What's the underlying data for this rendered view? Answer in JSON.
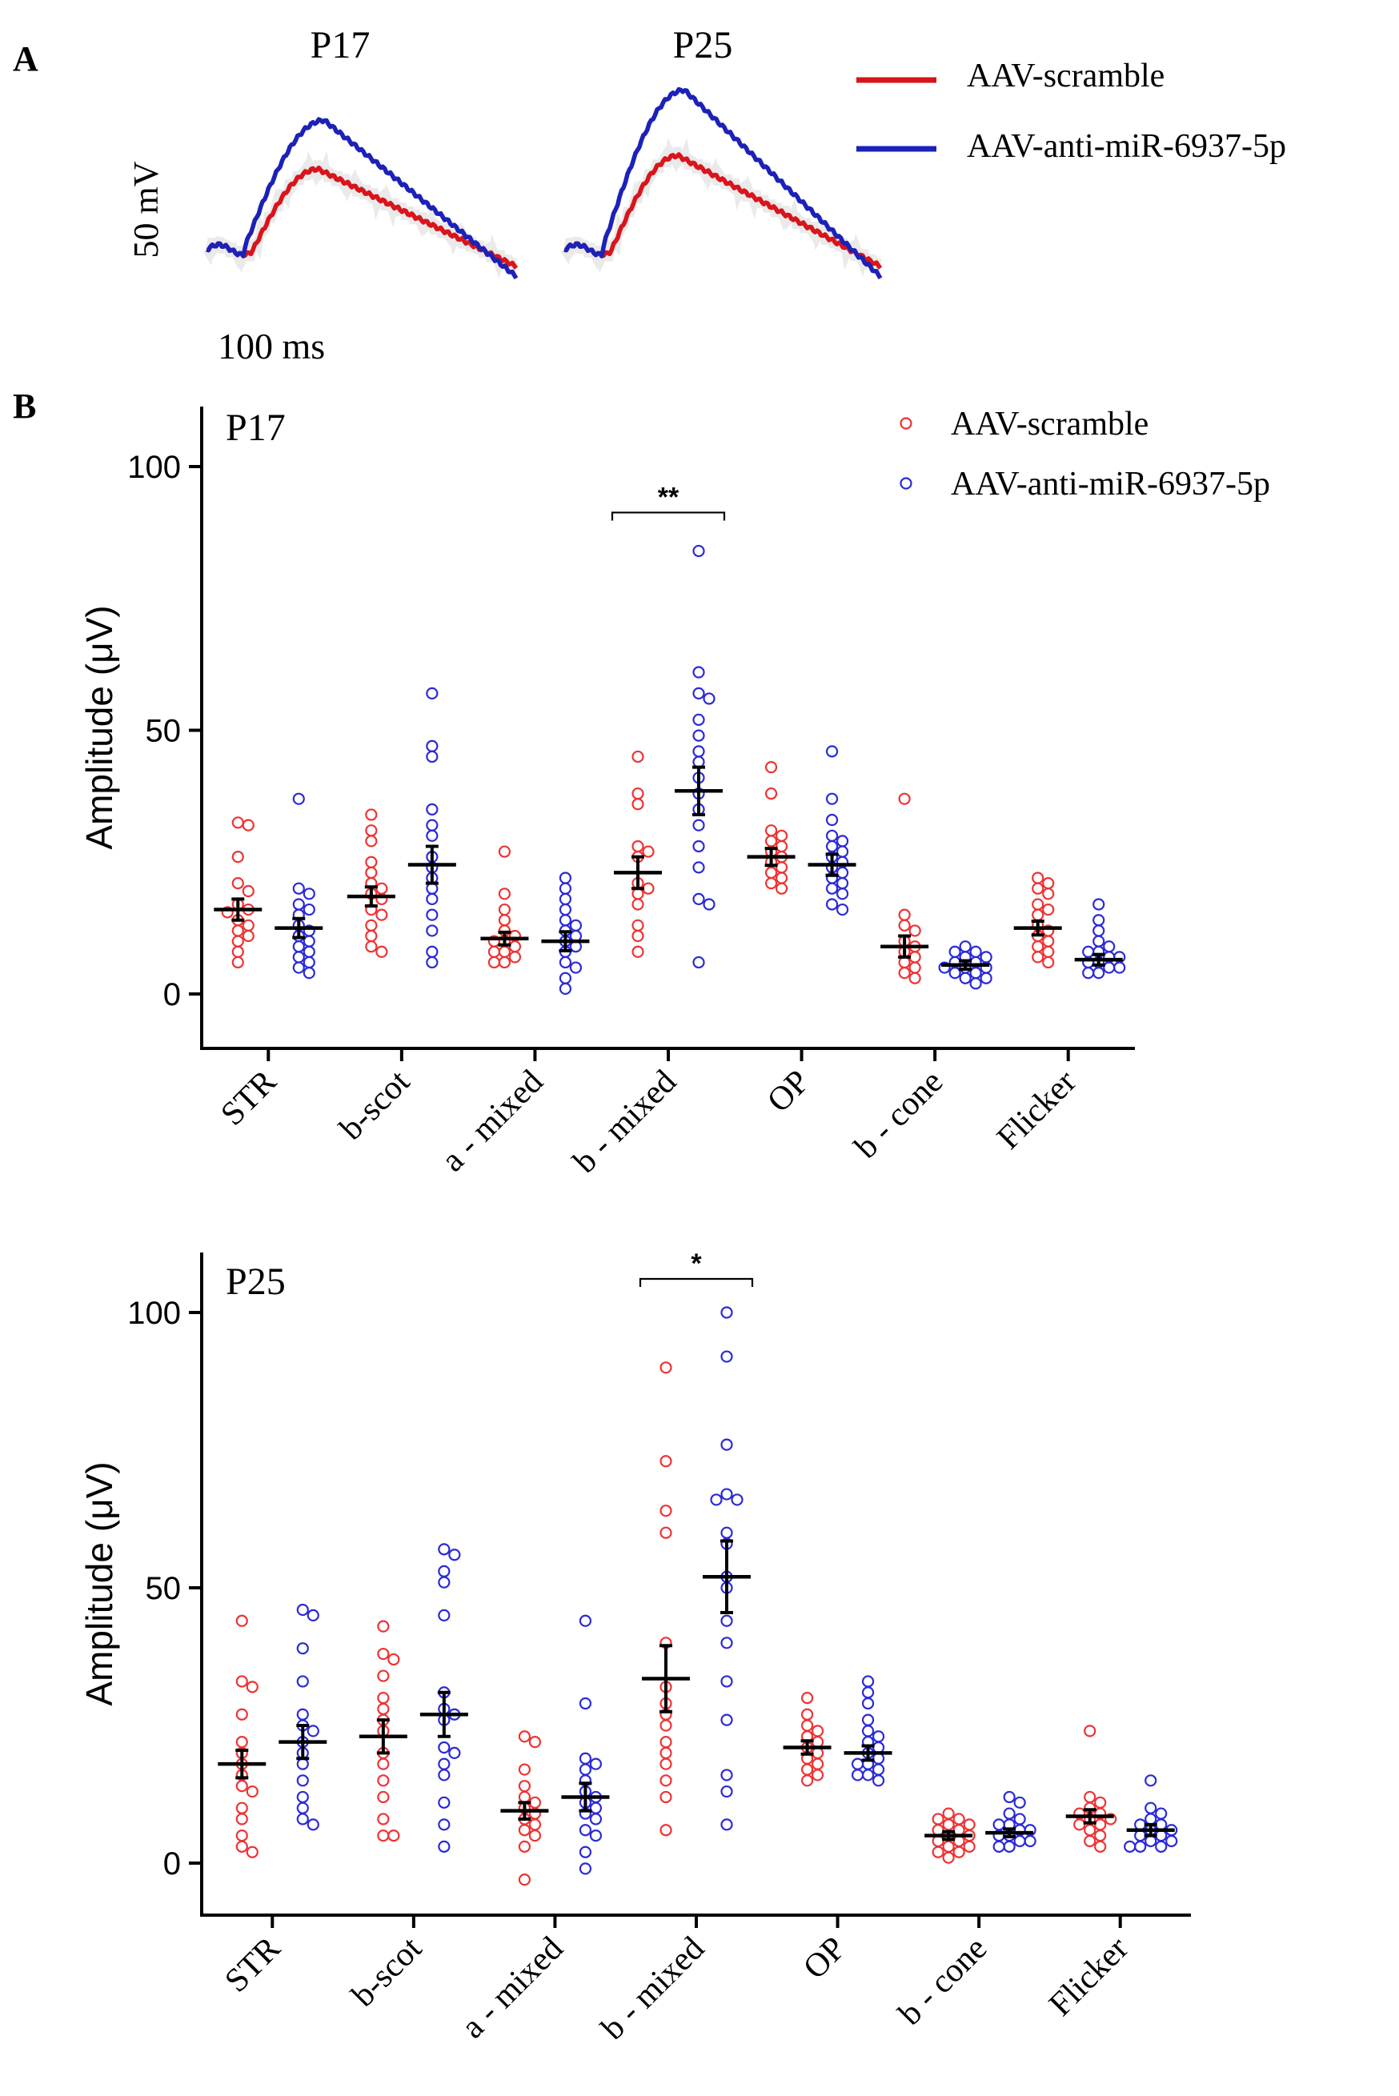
{
  "panel_a": {
    "label": "A",
    "traces": [
      {
        "title": "P17",
        "scramble_peak": 0.48,
        "anti_peak": 0.77
      },
      {
        "title": "P25",
        "scramble_peak": 0.56,
        "anti_peak": 0.95
      }
    ],
    "scale_voltage": "50 mV",
    "scale_time": "100 ms",
    "legend": [
      {
        "label": "AAV-scramble",
        "color": "#d9141b"
      },
      {
        "label": "AAV-anti-miR-6937-5p",
        "color": "#1c21b8"
      }
    ]
  },
  "panel_b": {
    "label": "B",
    "legend": [
      {
        "label": "AAV-scramble",
        "color": "#ee3333"
      },
      {
        "label": "AAV-anti-miR-6937-5p",
        "color": "#2a2ad8"
      }
    ]
  },
  "chart_data": [
    {
      "type": "scatter",
      "title": "P17",
      "ylabel": "Amplitude (μV)",
      "ylim": [
        -10,
        110
      ],
      "yticks": [
        0,
        50,
        100
      ],
      "categories": [
        "STR",
        "b-scot",
        "a - mixed",
        "b - mixed",
        "OP",
        "b - cone",
        "Flicker"
      ],
      "significance": [
        {
          "category": "b - mixed",
          "label": "**"
        }
      ],
      "series": [
        {
          "name": "AAV-scramble",
          "color": "#ee3333",
          "mean": [
            16,
            18.5,
            10.5,
            23,
            26,
            9,
            12.5
          ],
          "sem": [
            2,
            1.8,
            1.2,
            3,
            1.6,
            2,
            1.3
          ],
          "points": [
            [
              32.5,
              32,
              26,
              21,
              19.5,
              17,
              16,
              15.5,
              14,
              13,
              12,
              11,
              10,
              8,
              6
            ],
            [
              34,
              31,
              29,
              25,
              23,
              21,
              20,
              19,
              18,
              16,
              15,
              13,
              11,
              9,
              8
            ],
            [
              27,
              19,
              16,
              14,
              12,
              11,
              10,
              10,
              9,
              8,
              8,
              7,
              6,
              6
            ],
            [
              45,
              38,
              36,
              28,
              27,
              26,
              21,
              20,
              19,
              17,
              13,
              11,
              8
            ],
            [
              43,
              38,
              31,
              30,
              29,
              28,
              27,
              26,
              25,
              24,
              23,
              22,
              21,
              20
            ],
            [
              37,
              15,
              13,
              12,
              10,
              9,
              8,
              7,
              6,
              5,
              4,
              3
            ],
            [
              22,
              21,
              20,
              19,
              17,
              16,
              15,
              13,
              12,
              11,
              10,
              9,
              8,
              7,
              6
            ]
          ]
        },
        {
          "name": "AAV-anti-miR-6937-5p",
          "color": "#2a2ad8",
          "mean": [
            12.5,
            24.5,
            10,
            38.5,
            24.5,
            5.5,
            6.5
          ],
          "sem": [
            1.8,
            3.5,
            1.8,
            4.5,
            2,
            0.8,
            1
          ],
          "points": [
            [
              37,
              20,
              19,
              17,
              16,
              15,
              13,
              12,
              11,
              10,
              9,
              8,
              7,
              6,
              5,
              4
            ],
            [
              57,
              47,
              45,
              35,
              32,
              30,
              26,
              24,
              22,
              20,
              18,
              15,
              12,
              8,
              6
            ],
            [
              22,
              20,
              18,
              16,
              14,
              13,
              12,
              11,
              10,
              9,
              8,
              6,
              5,
              3,
              1
            ],
            [
              84,
              61,
              57,
              56,
              52,
              49,
              46,
              44,
              41,
              38,
              35,
              32,
              28,
              24,
              18,
              17,
              6
            ],
            [
              46,
              37,
              33,
              30,
              29,
              28,
              27,
              26,
              25,
              24,
              23,
              22,
              21,
              20,
              19,
              17,
              16
            ],
            [
              9,
              8,
              8,
              7,
              7,
              6,
              6,
              5,
              5,
              5,
              4,
              4,
              3,
              3,
              2
            ],
            [
              17,
              14,
              12,
              10,
              9,
              8,
              8,
              7,
              7,
              6,
              6,
              5,
              5,
              4,
              4
            ]
          ]
        }
      ]
    },
    {
      "type": "scatter",
      "title": "P25",
      "ylabel": "Amplitude (μV)",
      "ylim": [
        -10,
        110
      ],
      "yticks": [
        0,
        50,
        100
      ],
      "categories": [
        "STR",
        "b-scot",
        "a - mixed",
        "b - mixed",
        "OP",
        "b - cone",
        "Flicker"
      ],
      "significance": [
        {
          "category": "b - mixed",
          "label": "*"
        }
      ],
      "series": [
        {
          "name": "AAV-scramble",
          "color": "#ee3333",
          "mean": [
            18,
            23,
            9.5,
            33.5,
            21,
            5,
            8.5
          ],
          "sem": [
            2.5,
            3,
            1.5,
            6,
            1.2,
            0.7,
            1.2
          ],
          "points": [
            [
              44,
              33,
              32,
              27,
              22,
              20,
              18,
              16,
              14,
              13,
              10,
              8,
              5,
              3,
              2
            ],
            [
              43,
              38,
              37,
              34,
              30,
              28,
              26,
              24,
              20,
              18,
              15,
              12,
              8,
              5,
              5
            ],
            [
              23,
              22,
              17,
              14,
              12,
              11,
              10,
              9,
              8,
              7,
              6,
              5,
              3,
              -3
            ],
            [
              90,
              73,
              64,
              60,
              40,
              32,
              29,
              27,
              25,
              22,
              20,
              18,
              15,
              12,
              6
            ],
            [
              30,
              27,
              25,
              24,
              23,
              22,
              21,
              20,
              19,
              18,
              17,
              16,
              15
            ],
            [
              9,
              8,
              8,
              7,
              7,
              6,
              6,
              5,
              5,
              4,
              4,
              3,
              3,
              2,
              2,
              1
            ],
            [
              24,
              12,
              11,
              10,
              9,
              9,
              8,
              8,
              7,
              7,
              6,
              5,
              4,
              3
            ]
          ]
        },
        {
          "name": "AAV-anti-miR-6937-5p",
          "color": "#2a2ad8",
          "mean": [
            22,
            27,
            12,
            52,
            20,
            5.5,
            6
          ],
          "sem": [
            3,
            4,
            2.5,
            6.5,
            1.3,
            0.7,
            1
          ],
          "points": [
            [
              46,
              45,
              39,
              33,
              27,
              25,
              24,
              22,
              20,
              18,
              15,
              12,
              10,
              8,
              7
            ],
            [
              57,
              56,
              53,
              51,
              45,
              31,
              28,
              27,
              26,
              21,
              20,
              18,
              16,
              11,
              7,
              3
            ],
            [
              44,
              29,
              19,
              18,
              17,
              15,
              13,
              12,
              11,
              10,
              9,
              8,
              6,
              5,
              2,
              -1
            ],
            [
              100,
              92,
              76,
              67,
              66,
              66,
              60,
              58,
              52,
              50,
              44,
              40,
              33,
              26,
              16,
              13,
              7
            ],
            [
              33,
              31,
              29,
              26,
              24,
              23,
              22,
              21,
              20,
              19,
              18,
              18,
              17,
              16,
              16,
              15
            ],
            [
              12,
              11,
              9,
              8,
              7,
              7,
              6,
              6,
              5,
              5,
              4,
              4,
              3,
              3
            ],
            [
              15,
              10,
              9,
              8,
              7,
              7,
              6,
              6,
              5,
              5,
              4,
              4,
              3,
              3,
              3
            ]
          ]
        }
      ]
    }
  ]
}
